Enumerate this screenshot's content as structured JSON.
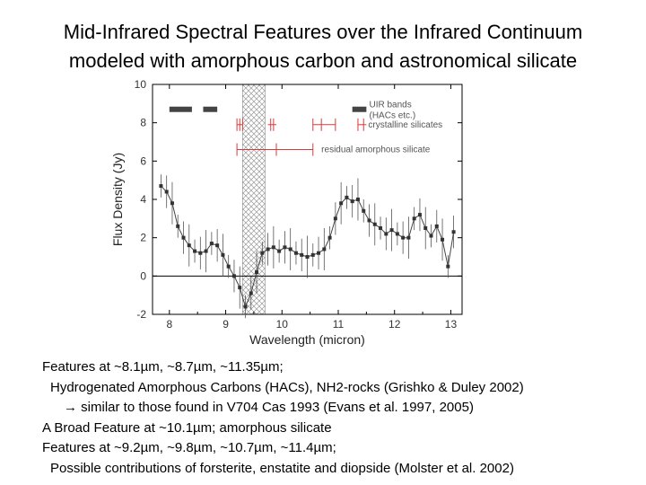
{
  "title": {
    "line1": "Mid-Infrared Spectral Features over the Infrared Continuum",
    "line2": "modeled with amorphous carbon and astronomical silicate"
  },
  "notes": [
    "Features at ~8.1µm, ~8.7µm, ~11.35µm;",
    "Hydrogenated Amorphous Carbons (HACs), NH2-rocks (Grishko & Duley 2002)",
    "→  similar to those found in V704 Cas 1993 (Evans et al. 1997, 2005)",
    "A Broad Feature at ~10.1µm; amorphous silicate",
    "Features at ~9.2µm, ~9.8µm, ~10.7µm, ~11.4µm;",
    "Possible contributions of forsterite, enstatite and diopside (Molster et al. 2002)"
  ],
  "chart_data": {
    "type": "scatter",
    "xlabel": "Wavelength (micron)",
    "ylabel": "Flux Density (Jy)",
    "xlim": [
      7.7,
      13.2
    ],
    "ylim": [
      -2,
      10
    ],
    "xticks": [
      8,
      9,
      10,
      11,
      12,
      13
    ],
    "yticks": [
      -2,
      0,
      2,
      4,
      6,
      8,
      10
    ],
    "zero_line": true,
    "hatched_region": [
      9.3,
      9.7
    ],
    "series": [
      {
        "points": [
          [
            7.85,
            4.7
          ],
          [
            7.95,
            4.4
          ],
          [
            8.05,
            3.8
          ],
          [
            8.15,
            2.6
          ],
          [
            8.25,
            2.0
          ],
          [
            8.35,
            1.6
          ],
          [
            8.45,
            1.3
          ],
          [
            8.55,
            1.2
          ],
          [
            8.65,
            1.3
          ],
          [
            8.75,
            1.7
          ],
          [
            8.85,
            1.6
          ],
          [
            8.95,
            1.1
          ],
          [
            9.05,
            0.5
          ],
          [
            9.15,
            0.0
          ],
          [
            9.25,
            -0.6
          ],
          [
            9.35,
            -1.6
          ],
          [
            9.45,
            -0.9
          ],
          [
            9.55,
            0.2
          ],
          [
            9.65,
            1.2
          ],
          [
            9.75,
            1.4
          ],
          [
            9.85,
            1.5
          ],
          [
            9.95,
            1.3
          ],
          [
            10.05,
            1.5
          ],
          [
            10.15,
            1.4
          ],
          [
            10.25,
            1.2
          ],
          [
            10.35,
            1.1
          ],
          [
            10.45,
            1.0
          ],
          [
            10.55,
            1.1
          ],
          [
            10.65,
            1.2
          ],
          [
            10.75,
            1.4
          ],
          [
            10.85,
            2.0
          ],
          [
            10.95,
            3.0
          ],
          [
            11.05,
            3.8
          ],
          [
            11.15,
            4.1
          ],
          [
            11.25,
            3.9
          ],
          [
            11.35,
            4.0
          ],
          [
            11.45,
            3.4
          ],
          [
            11.55,
            2.9
          ],
          [
            11.65,
            2.7
          ],
          [
            11.75,
            2.5
          ],
          [
            11.85,
            2.2
          ],
          [
            11.95,
            2.4
          ],
          [
            12.05,
            2.2
          ],
          [
            12.15,
            2.0
          ],
          [
            12.25,
            2.0
          ],
          [
            12.35,
            3.0
          ],
          [
            12.45,
            3.2
          ],
          [
            12.55,
            2.5
          ],
          [
            12.65,
            2.1
          ],
          [
            12.75,
            2.6
          ],
          [
            12.85,
            1.9
          ],
          [
            12.95,
            0.5
          ],
          [
            13.05,
            2.3
          ]
        ]
      }
    ],
    "annotations": [
      {
        "label": "UIR bands\n(HACs etc.)",
        "bands": [
          [
            8.0,
            8.4
          ],
          [
            8.6,
            8.85
          ],
          [
            11.25,
            11.5
          ]
        ],
        "y": 8.7
      },
      {
        "label": "crystalline silicates",
        "ticks": [
          9.2,
          9.25,
          9.3,
          9.8,
          9.85,
          10.55,
          10.7,
          10.95,
          11.35,
          11.45
        ],
        "range_groups": [
          [
            9.2,
            9.3
          ],
          [
            9.75,
            9.9
          ],
          [
            10.55,
            10.95
          ],
          [
            11.35,
            11.5
          ]
        ],
        "y": 7.9
      },
      {
        "label": "residual amorphous silicate",
        "range": [
          9.2,
          10.55
        ],
        "tick": 9.9,
        "y": 6.6
      }
    ]
  }
}
